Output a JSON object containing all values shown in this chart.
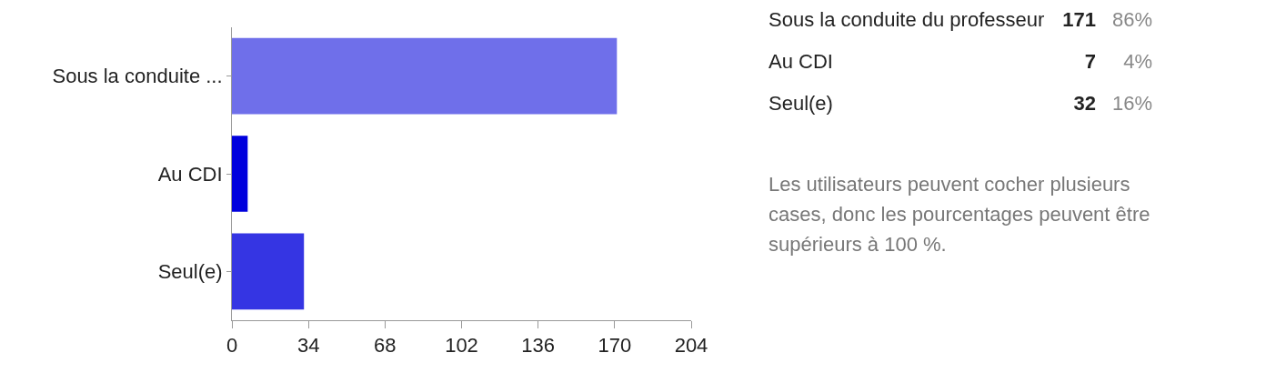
{
  "chart_data": {
    "type": "bar",
    "orientation": "horizontal",
    "categories": [
      "Sous la conduite ...",
      "Au CDI",
      "Seul(e)"
    ],
    "values": [
      171,
      7,
      32
    ],
    "colors": [
      "#6f6fea",
      "#0000dd",
      "#3535e3"
    ],
    "xlim": [
      0,
      204
    ],
    "xticks": [
      0,
      34,
      68,
      102,
      136,
      170,
      204
    ],
    "grid": false,
    "annotations": [
      "Sous la conduite du professeur",
      "171",
      "86%",
      "Au CDI",
      "7",
      "4%",
      "Seul(e)",
      "32",
      "16%",
      "Les utilisateurs peuvent cocher plusieurs cases, donc les pourcentages peuvent être supérieurs à 100 %."
    ]
  }
}
